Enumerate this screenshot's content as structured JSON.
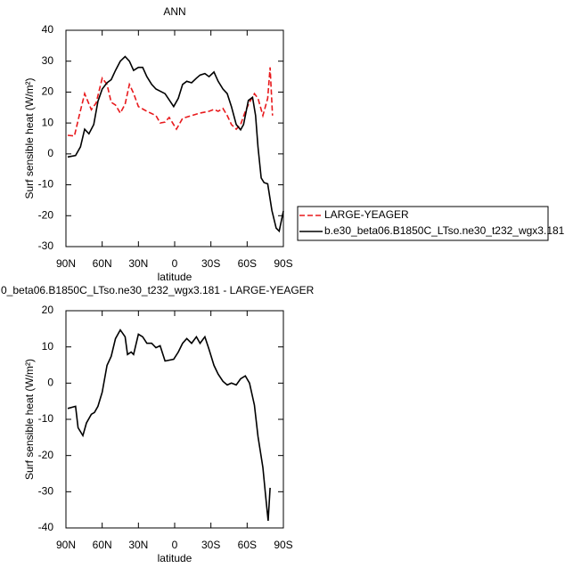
{
  "chart_data": [
    {
      "type": "line",
      "title": "ANN",
      "xlabel": "latitude",
      "ylabel": "Surf sensible heat (W/m²)",
      "xlim": [
        90,
        -90
      ],
      "xticks": [
        {
          "value": 90,
          "label": "90N"
        },
        {
          "value": 60,
          "label": "60N"
        },
        {
          "value": 30,
          "label": "30N"
        },
        0,
        {
          "value": -30,
          "label": "30S"
        },
        {
          "value": -60,
          "label": "60S"
        },
        {
          "value": -90,
          "label": "90S"
        }
      ],
      "ylim": [
        -30,
        40
      ],
      "yticks": [
        -30,
        -20,
        -10,
        0,
        10,
        20,
        30,
        40
      ],
      "legend": "right",
      "series": [
        {
          "name": "LARGE-YEAGER",
          "color": "#e8191c",
          "linestyle": "dashed",
          "x": [
            88.5,
            83,
            79,
            74.5,
            69,
            65,
            60,
            56,
            52.5,
            49,
            45,
            41,
            37.5,
            34,
            30,
            23,
            15.5,
            12,
            8,
            4.5,
            -1.5,
            -6.6,
            -14,
            -21,
            -28.5,
            -32.5,
            -36,
            -40,
            -43.5,
            -47,
            -51,
            -54.6,
            -58.5,
            -62,
            -66,
            -69,
            -73,
            -77,
            -79,
            -81
          ],
          "values": [
            6,
            5.8,
            12.4,
            19.5,
            14.3,
            16.5,
            24.5,
            22.5,
            16.7,
            15.8,
            13.2,
            16.1,
            22.5,
            19.6,
            15.3,
            13.8,
            12.4,
            10,
            10.3,
            11.8,
            8,
            11.5,
            12.4,
            13.2,
            13.8,
            14.4,
            13.8,
            14.7,
            12.4,
            9.5,
            8,
            9.5,
            13.8,
            16.7,
            19.5,
            18,
            12.4,
            18,
            28,
            12.4
          ]
        },
        {
          "name": "b.e30_beta06.B1850C_LTso.ne30_t232_wgx3.181",
          "color": "#000000",
          "linestyle": "solid",
          "x": [
            88.5,
            82,
            78,
            74.5,
            71,
            67,
            63.5,
            60,
            56,
            52.5,
            49,
            45,
            41,
            37.5,
            34,
            30,
            26.5,
            23,
            19,
            15.5,
            8,
            0.8,
            -3,
            -6.6,
            -10,
            -14,
            -18,
            -21,
            -25,
            -28.5,
            -32.5,
            -36,
            -40,
            -43.5,
            -47,
            -51,
            -54.6,
            -57,
            -61,
            -64.5,
            -67,
            -69,
            -71.6,
            -74,
            -77,
            -80.5,
            -84,
            -86.5,
            -90
          ],
          "values": [
            -1,
            -0.5,
            2.3,
            8,
            6.5,
            9.5,
            17,
            21,
            23,
            24,
            27,
            30,
            31.5,
            30,
            27,
            28,
            28,
            25,
            22.5,
            21,
            19.5,
            15.3,
            18,
            22.5,
            23.5,
            23,
            24.5,
            25.5,
            26,
            25,
            26.5,
            23.5,
            21,
            19.5,
            15.3,
            9.5,
            7.8,
            9.5,
            17.3,
            18.3,
            12.4,
            2.3,
            -7.8,
            -9.3,
            -9.7,
            -18.3,
            -24,
            -25,
            -18.5
          ]
        }
      ]
    },
    {
      "type": "line",
      "title": "0_beta06.B1850C_LTso.ne30_t232_wgx3.181 - LARGE-YEAGER",
      "xlabel": "latitude",
      "ylabel": "Surf sensible heat (W/m²)",
      "xlim": [
        90,
        -90
      ],
      "xticks": [
        {
          "value": 90,
          "label": "90N"
        },
        {
          "value": 60,
          "label": "60N"
        },
        {
          "value": 30,
          "label": "30N"
        },
        0,
        {
          "value": -30,
          "label": "30S"
        },
        {
          "value": -60,
          "label": "60S"
        },
        {
          "value": -90,
          "label": "90S"
        }
      ],
      "ylim": [
        -40,
        20
      ],
      "yticks": [
        -40,
        -30,
        -20,
        -10,
        0,
        10,
        20
      ],
      "series": [
        {
          "color": "#000000",
          "linestyle": "solid",
          "x": [
            88.5,
            82,
            80,
            76,
            73,
            69,
            66.4,
            63.5,
            60,
            56,
            52.5,
            49,
            45,
            41,
            39,
            36,
            34,
            30,
            26.5,
            23,
            19,
            15.5,
            12,
            8,
            0.8,
            -3,
            -6.6,
            -10,
            -14,
            -18,
            -21,
            -25,
            -28.5,
            -32.5,
            -36,
            -40,
            -43.5,
            -47,
            -51,
            -54.6,
            -58.5,
            -62,
            -66,
            -69,
            -73,
            -75.2,
            -77.4,
            -79
          ],
          "values": [
            -7,
            -6.4,
            -12.3,
            -14.5,
            -11,
            -8.6,
            -8.1,
            -6.4,
            -2.5,
            4.9,
            7.4,
            12.3,
            14.7,
            12.8,
            7.9,
            8.6,
            7.9,
            13.5,
            12.8,
            11,
            11,
            9.8,
            10.3,
            6.1,
            6.6,
            8.6,
            11,
            12.3,
            11,
            12.8,
            11,
            12.8,
            9.3,
            4.9,
            2.5,
            0.5,
            -0.5,
            0,
            -0.5,
            1.2,
            2,
            0,
            -6.1,
            -14.7,
            -23.3,
            -30.7,
            -38,
            -28.9
          ]
        }
      ]
    }
  ]
}
